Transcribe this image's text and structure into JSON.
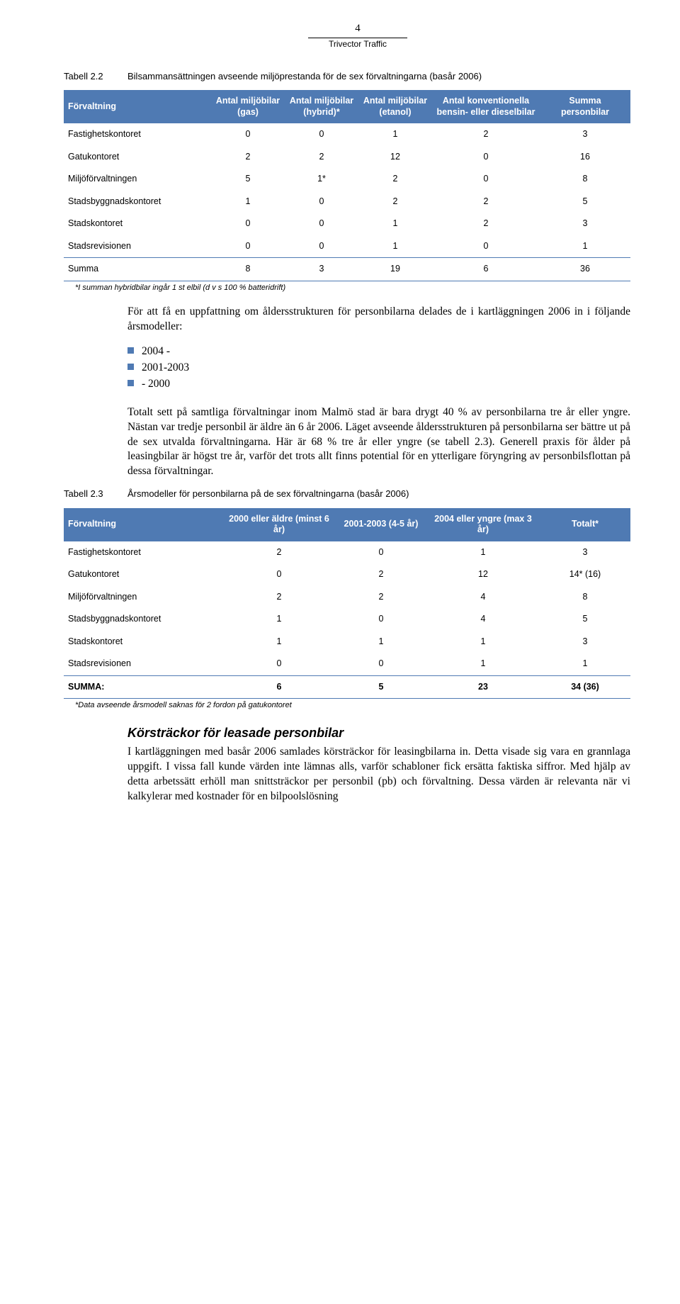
{
  "header": {
    "page_number": "4",
    "subtitle": "Trivector Traffic"
  },
  "colors": {
    "table_header_bg": "#4f7ab3",
    "table_header_fg": "#ffffff",
    "rule": "#4f7ab3",
    "bullet": "#4f7ab3"
  },
  "table1": {
    "label": "Tabell 2.2",
    "title": "Bilsammansättningen avseende miljöprestanda för de sex förvaltningarna (basår 2006)",
    "columns": [
      "Förvaltning",
      "Antal miljöbilar (gas)",
      "Antal miljöbilar (hybrid)*",
      "Antal miljöbilar (etanol)",
      "Antal konventionella bensin- eller dieselbilar",
      "Summa personbilar"
    ],
    "rows": [
      [
        "Fastighetskontoret",
        "0",
        "0",
        "1",
        "2",
        "3"
      ],
      [
        "Gatukontoret",
        "2",
        "2",
        "12",
        "0",
        "16"
      ],
      [
        "Miljöförvaltningen",
        "5",
        "1*",
        "2",
        "0",
        "8"
      ],
      [
        "Stadsbyggnadskontoret",
        "1",
        "0",
        "2",
        "2",
        "5"
      ],
      [
        "Stadskontoret",
        "0",
        "0",
        "1",
        "2",
        "3"
      ],
      [
        "Stadsrevisionen",
        "0",
        "0",
        "1",
        "0",
        "1"
      ]
    ],
    "sum_row": [
      "Summa",
      "8",
      "3",
      "19",
      "6",
      "36"
    ],
    "footnote": "*I summan hybridbilar ingår 1 st elbil (d v s 100 % batteridrift)"
  },
  "para1": "För att få en uppfattning om åldersstrukturen för personbilarna delades de i kartläggningen 2006 in i följande årsmodeller:",
  "bullets": [
    "2004 -",
    "2001-2003",
    "- 2000"
  ],
  "para2": "Totalt sett på samtliga förvaltningar inom Malmö stad är bara drygt 40 % av personbilarna tre år eller yngre. Nästan var tredje personbil är äldre än 6 år 2006. Läget avseende åldersstrukturen på personbilarna ser bättre ut på de sex utvalda förvaltningarna. Här är 68 % tre år eller yngre (se tabell 2.3). Generell praxis för ålder på leasingbilar är högst tre år, varför det trots allt finns potential för en ytterligare föryngring av personbilsflottan på dessa förvaltningar.",
  "table2": {
    "label": "Tabell 2.3",
    "title": "Årsmodeller för personbilarna på de sex förvaltningarna (basår 2006)",
    "columns": [
      "Förvaltning",
      "2000 eller äldre (minst 6 år)",
      "2001-2003 (4-5 år)",
      "2004 eller yngre (max 3 år)",
      "Totalt*"
    ],
    "rows": [
      [
        "Fastighetskontoret",
        "2",
        "0",
        "1",
        "3"
      ],
      [
        "Gatukontoret",
        "0",
        "2",
        "12",
        "14* (16)"
      ],
      [
        "Miljöförvaltningen",
        "2",
        "2",
        "4",
        "8"
      ],
      [
        "Stadsbyggnadskontoret",
        "1",
        "0",
        "4",
        "5"
      ],
      [
        "Stadskontoret",
        "1",
        "1",
        "1",
        "3"
      ],
      [
        "Stadsrevisionen",
        "0",
        "0",
        "1",
        "1"
      ]
    ],
    "sum_row": [
      "SUMMA:",
      "6",
      "5",
      "23",
      "34 (36)"
    ],
    "footnote": "*Data avseende årsmodell saknas för 2 fordon på gatukontoret"
  },
  "section_heading": "Körsträckor för leasade personbilar",
  "para3": "I kartläggningen med basår 2006 samlades körsträckor för leasingbilarna in. Detta visade sig vara en grannlaga uppgift. I vissa fall kunde värden inte lämnas alls, varför schabloner fick ersätta faktiska siffror. Med hjälp av detta arbetssätt erhöll man snittsträckor per personbil (pb) och förvaltning. Dessa värden är relevanta när vi kalkylerar med kostnader för en bilpoolslösning"
}
